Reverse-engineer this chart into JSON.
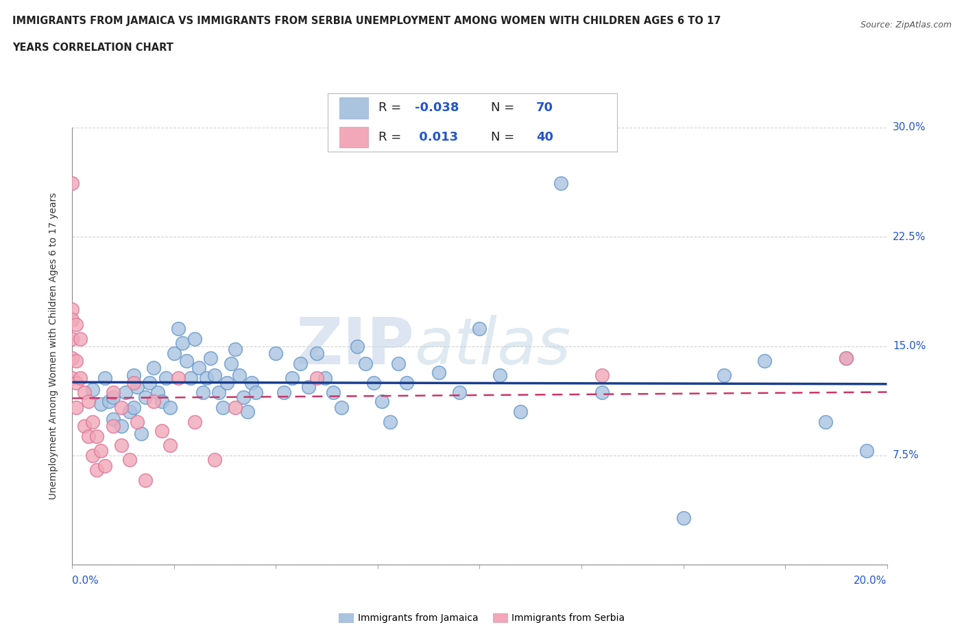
{
  "title_line1": "IMMIGRANTS FROM JAMAICA VS IMMIGRANTS FROM SERBIA UNEMPLOYMENT AMONG WOMEN WITH CHILDREN AGES 6 TO 17",
  "title_line2": "YEARS CORRELATION CHART",
  "source": "Source: ZipAtlas.com",
  "ylabel": "Unemployment Among Women with Children Ages 6 to 17 years",
  "r_jamaica": -0.038,
  "n_jamaica": 70,
  "r_serbia": 0.013,
  "n_serbia": 40,
  "xlim": [
    0.0,
    0.2
  ],
  "ylim": [
    0.0,
    0.3
  ],
  "yticks": [
    0.0,
    0.075,
    0.15,
    0.225,
    0.3
  ],
  "ytick_labels": [
    "",
    "7.5%",
    "15.0%",
    "22.5%",
    "30.0%"
  ],
  "xtick_labels": [
    "0.0%",
    "",
    "",
    "",
    "",
    "",
    "",
    "",
    "20.0%"
  ],
  "watermark_zip": "ZIP",
  "watermark_atlas": "atlas",
  "jamaica_color": "#aac4e0",
  "jamaica_edge_color": "#6699cc",
  "jamaica_line_color": "#1a3d8f",
  "serbia_color": "#f2a8b8",
  "serbia_edge_color": "#dd7799",
  "serbia_line_color": "#cc3366",
  "background_color": "#ffffff",
  "grid_color": "#cccccc",
  "jamaica_x": [
    0.005,
    0.007,
    0.008,
    0.009,
    0.01,
    0.01,
    0.012,
    0.013,
    0.014,
    0.015,
    0.015,
    0.016,
    0.017,
    0.018,
    0.019,
    0.02,
    0.021,
    0.022,
    0.023,
    0.024,
    0.025,
    0.026,
    0.027,
    0.028,
    0.029,
    0.03,
    0.031,
    0.032,
    0.033,
    0.034,
    0.035,
    0.036,
    0.037,
    0.038,
    0.039,
    0.04,
    0.041,
    0.042,
    0.043,
    0.044,
    0.045,
    0.05,
    0.052,
    0.054,
    0.056,
    0.058,
    0.06,
    0.062,
    0.064,
    0.066,
    0.07,
    0.072,
    0.074,
    0.076,
    0.078,
    0.08,
    0.082,
    0.09,
    0.095,
    0.1,
    0.105,
    0.11,
    0.12,
    0.13,
    0.15,
    0.16,
    0.17,
    0.185,
    0.19,
    0.195
  ],
  "jamaica_y": [
    0.12,
    0.11,
    0.128,
    0.112,
    0.115,
    0.1,
    0.095,
    0.118,
    0.105,
    0.13,
    0.108,
    0.122,
    0.09,
    0.115,
    0.125,
    0.135,
    0.118,
    0.112,
    0.128,
    0.108,
    0.145,
    0.162,
    0.152,
    0.14,
    0.128,
    0.155,
    0.135,
    0.118,
    0.128,
    0.142,
    0.13,
    0.118,
    0.108,
    0.125,
    0.138,
    0.148,
    0.13,
    0.115,
    0.105,
    0.125,
    0.118,
    0.145,
    0.118,
    0.128,
    0.138,
    0.122,
    0.145,
    0.128,
    0.118,
    0.108,
    0.15,
    0.138,
    0.125,
    0.112,
    0.098,
    0.138,
    0.125,
    0.132,
    0.118,
    0.162,
    0.13,
    0.105,
    0.262,
    0.118,
    0.032,
    0.13,
    0.14,
    0.098,
    0.142,
    0.078
  ],
  "serbia_x": [
    0.0,
    0.0,
    0.0,
    0.0,
    0.0,
    0.0,
    0.001,
    0.001,
    0.001,
    0.001,
    0.002,
    0.002,
    0.003,
    0.003,
    0.004,
    0.004,
    0.005,
    0.005,
    0.006,
    0.006,
    0.007,
    0.008,
    0.01,
    0.01,
    0.012,
    0.012,
    0.014,
    0.015,
    0.016,
    0.018,
    0.02,
    0.022,
    0.024,
    0.026,
    0.03,
    0.035,
    0.04,
    0.06,
    0.13,
    0.19
  ],
  "serbia_y": [
    0.262,
    0.175,
    0.168,
    0.155,
    0.142,
    0.128,
    0.165,
    0.14,
    0.125,
    0.108,
    0.155,
    0.128,
    0.118,
    0.095,
    0.112,
    0.088,
    0.098,
    0.075,
    0.088,
    0.065,
    0.078,
    0.068,
    0.118,
    0.095,
    0.108,
    0.082,
    0.072,
    0.125,
    0.098,
    0.058,
    0.112,
    0.092,
    0.082,
    0.128,
    0.098,
    0.072,
    0.108,
    0.128,
    0.13,
    0.142
  ]
}
